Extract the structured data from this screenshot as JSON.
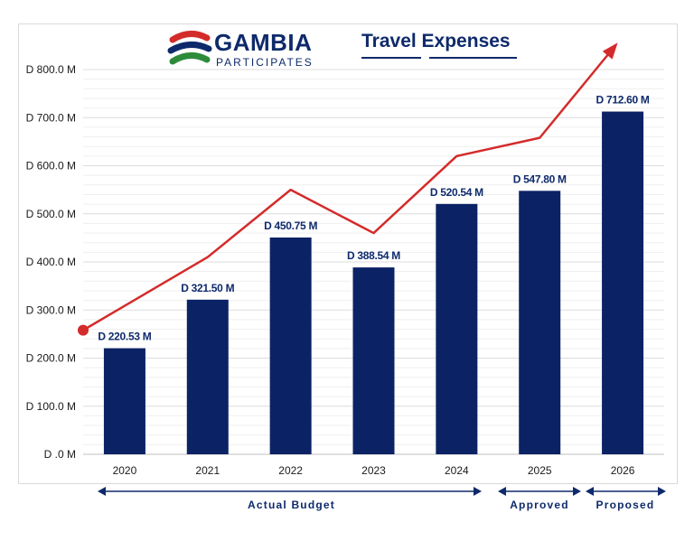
{
  "logo": {
    "name": "GAMBIA",
    "tagline": "PARTICIPATES"
  },
  "title": "Travel Expenses",
  "colors": {
    "bar": "#0b2265",
    "line": "#d42b2b",
    "text": "#0e2a6b",
    "grid": "#e6e6e6"
  },
  "chart_data": {
    "type": "bar",
    "title": "Travel Expenses",
    "categories": [
      "2020",
      "2021",
      "2022",
      "2023",
      "2024",
      "2025",
      "2026"
    ],
    "values": [
      220.53,
      321.5,
      450.75,
      388.54,
      520.54,
      547.8,
      712.6
    ],
    "data_labels": [
      "D 220.53 M",
      "D 321.50 M",
      "D 450.75 M",
      "D 388.54 M",
      "D 520.54 M",
      "D 547.80 M",
      "D 712.60 M"
    ],
    "ylim": [
      0,
      800
    ],
    "yticks": [
      0,
      100,
      200,
      300,
      400,
      500,
      600,
      700,
      800
    ],
    "ytick_labels": [
      "D .0 M",
      "D 100.0 M",
      "D 200.0 M",
      "D 300.0 M",
      "D 400.0 M",
      "D 500.0 M",
      "D 600.0 M",
      "D 700.0 M",
      "D 800.0 M"
    ],
    "trend_line": {
      "description": "decorative upward trend arrow",
      "values": [
        258,
        410,
        550,
        460,
        620,
        658,
        850
      ]
    },
    "x_groups": [
      {
        "label": "Actual Budget",
        "from": "2020",
        "to": "2024"
      },
      {
        "label": "Approved",
        "from": "2025",
        "to": "2025"
      },
      {
        "label": "Proposed",
        "from": "2026",
        "to": "2026"
      }
    ],
    "grid": true,
    "xlabel": "",
    "ylabel": ""
  }
}
